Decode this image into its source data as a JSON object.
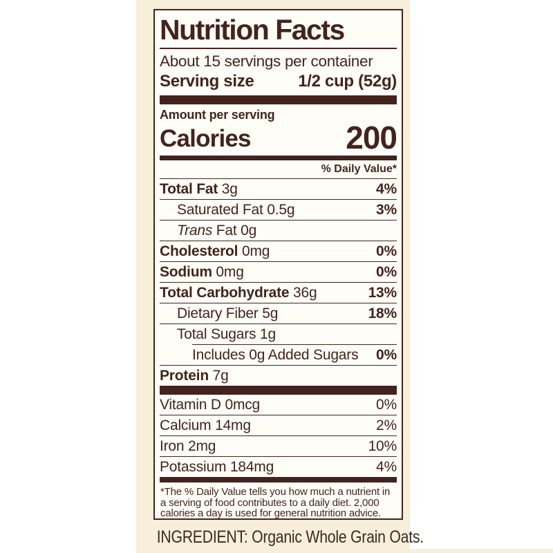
{
  "colors": {
    "brown": "#43231d",
    "cream": "#f8efdb",
    "label-bg": "#fffdf7",
    "page-bg": "#ffffff",
    "ingredient": "#3a2b22"
  },
  "label": {
    "title": "Nutrition Facts",
    "servings_per_container": "About 15 servings per container",
    "serving_size_label": "Serving size",
    "serving_size_value": "1/2 cup (52g)",
    "amount_per_serving": "Amount per serving",
    "calories_label": "Calories",
    "calories_value": "200",
    "daily_value_header": "% Daily Value*",
    "nutrients": [
      {
        "b": "Total Fat",
        "r": " 3g",
        "dv": "4%",
        "dvb": true,
        "ind": 0,
        "sep": "full"
      },
      {
        "r": "Saturated Fat 0.5g",
        "dv": "3%",
        "dvb": true,
        "ind": 1,
        "sep": "full"
      },
      {
        "i": "Trans",
        "r": " Fat 0g",
        "dv": "",
        "ind": 1,
        "sep": "full"
      },
      {
        "b": "Cholesterol",
        "r": " 0mg",
        "dv": "0%",
        "dvb": true,
        "ind": 0,
        "sep": "full"
      },
      {
        "b": "Sodium",
        "r": " 0mg",
        "dv": "0%",
        "dvb": true,
        "ind": 0,
        "sep": "full"
      },
      {
        "b": "Total Carbohydrate",
        "r": " 36g",
        "dv": "13%",
        "dvb": true,
        "ind": 0,
        "sep": "full"
      },
      {
        "r": "Dietary Fiber 5g",
        "dv": "18%",
        "dvb": true,
        "ind": 1,
        "sep": "full"
      },
      {
        "r": "Total Sugars 1g",
        "dv": "",
        "ind": 1,
        "sep": "full"
      },
      {
        "r": "Includes 0g Added Sugars",
        "dv": "0%",
        "dvb": true,
        "ind": 0,
        "sep": "indent"
      },
      {
        "b": "Protein",
        "r": " 7g",
        "dv": "",
        "ind": 0,
        "sep": "full"
      }
    ],
    "vitamins": [
      {
        "r": "Vitamin D 0mcg",
        "dv": "0%"
      },
      {
        "r": "Calcium 14mg",
        "dv": "2%"
      },
      {
        "r": "Iron 2mg",
        "dv": "10%"
      },
      {
        "r": "Potassium 184mg",
        "dv": "4%"
      }
    ],
    "footnote_lines": [
      "*The % Daily Value tells you how much a nutrient in",
      "a serving of food contributes to a daily diet. 2,000",
      "calories a day is used for general nutrition advice."
    ]
  },
  "ingredient_line": "INGREDIENT: Organic Whole Grain Oats."
}
